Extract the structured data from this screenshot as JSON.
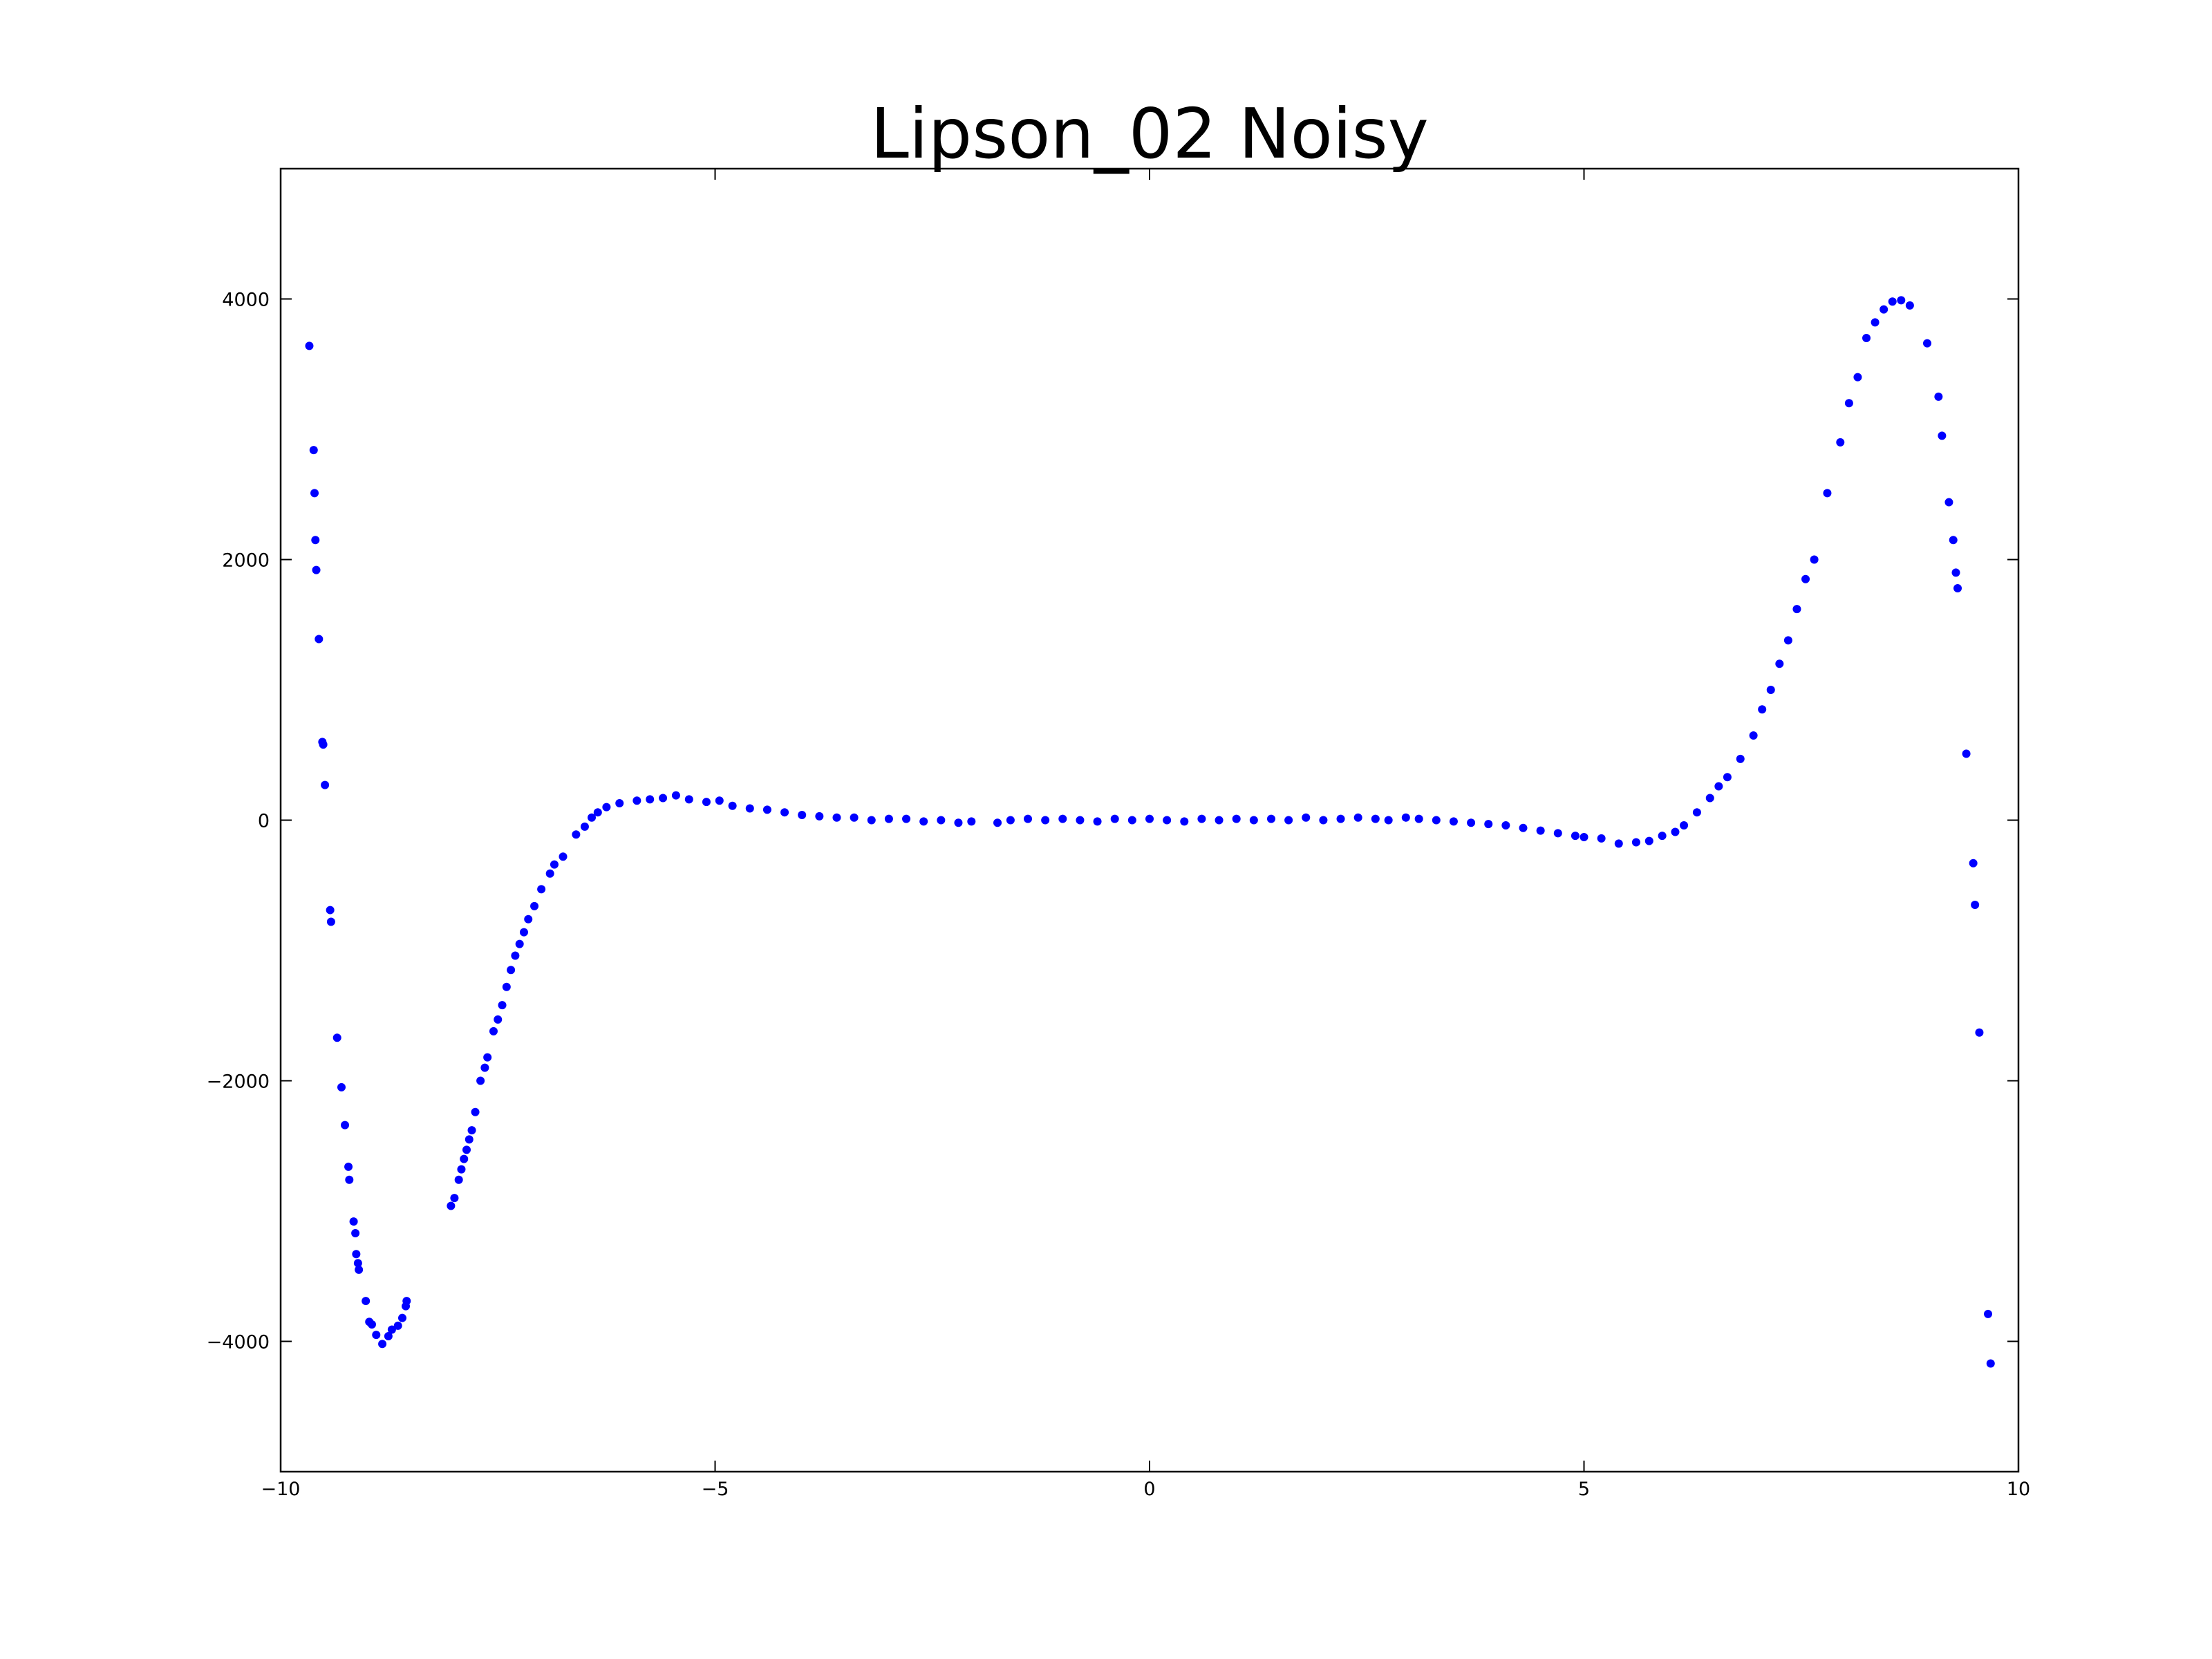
{
  "chart_data": {
    "type": "scatter",
    "title": "Lipson_02 Noisy",
    "color": "#0000ff",
    "x": [
      -9.67,
      -9.62,
      -9.61,
      -9.6,
      -9.59,
      -9.56,
      -9.52,
      -9.51,
      -9.49,
      -9.43,
      -9.42,
      -9.35,
      -9.3,
      -9.26,
      -9.22,
      -9.21,
      -9.16,
      -9.14,
      -9.13,
      -9.11,
      -9.1,
      -9.02,
      -8.98,
      -8.95,
      -8.9,
      -8.83,
      -8.76,
      -8.72,
      -8.65,
      -8.6,
      -8.56,
      -8.55,
      -8.04,
      -8.0,
      -7.95,
      -7.92,
      -7.89,
      -7.86,
      -7.83,
      -7.8,
      -7.76,
      -7.7,
      -7.65,
      -7.62,
      -7.55,
      -7.5,
      -7.45,
      -7.4,
      -7.35,
      -7.3,
      -7.25,
      -7.2,
      -7.15,
      -7.08,
      -7.0,
      -6.9,
      -6.85,
      -6.75,
      -6.6,
      -6.5,
      -6.42,
      -6.35,
      -6.25,
      -6.1,
      -5.9,
      -5.75,
      -5.6,
      -5.45,
      -5.3,
      -5.1,
      -4.95,
      -4.8,
      -4.6,
      -4.4,
      -4.2,
      -4.0,
      -3.8,
      -3.6,
      -3.4,
      -3.2,
      -3.0,
      -2.8,
      -2.6,
      -2.4,
      -2.2,
      -2.05,
      -1.75,
      -1.6,
      -1.4,
      -1.2,
      -1.0,
      -0.8,
      -0.6,
      -0.4,
      -0.2,
      0.0,
      0.2,
      0.4,
      0.6,
      0.8,
      1.0,
      1.2,
      1.4,
      1.6,
      1.8,
      2.0,
      2.2,
      2.4,
      2.6,
      2.75,
      2.95,
      3.1,
      3.3,
      3.5,
      3.7,
      3.9,
      4.1,
      4.3,
      4.5,
      4.7,
      4.9,
      5.0,
      5.2,
      5.4,
      5.6,
      5.75,
      5.9,
      6.05,
      6.15,
      6.3,
      6.45,
      6.55,
      6.65,
      6.8,
      6.95,
      7.05,
      7.15,
      7.25,
      7.35,
      7.45,
      7.55,
      7.65,
      7.8,
      7.95,
      8.05,
      8.15,
      8.25,
      8.35,
      8.45,
      8.55,
      8.65,
      8.75,
      8.95,
      9.08,
      9.12,
      9.2,
      9.25,
      9.28,
      9.3,
      9.4,
      9.48,
      9.5,
      9.55,
      9.65,
      9.68
    ],
    "values": [
      3640,
      2840,
      2510,
      2150,
      1920,
      1390,
      600,
      580,
      270,
      -690,
      -780,
      -1670,
      -2050,
      -2340,
      -2660,
      -2760,
      -3080,
      -3170,
      -3330,
      -3400,
      -3450,
      -3690,
      -3850,
      -3870,
      -3950,
      -4020,
      -3960,
      -3910,
      -3880,
      -3820,
      -3730,
      -3690,
      -2960,
      -2900,
      -2760,
      -2680,
      -2600,
      -2530,
      -2450,
      -2380,
      -2240,
      -2000,
      -1900,
      -1820,
      -1620,
      -1530,
      -1420,
      -1280,
      -1150,
      -1040,
      -950,
      -860,
      -760,
      -660,
      -530,
      -410,
      -340,
      -280,
      -110,
      -50,
      20,
      60,
      100,
      130,
      150,
      160,
      170,
      190,
      160,
      140,
      150,
      110,
      90,
      80,
      60,
      40,
      30,
      20,
      20,
      0,
      10,
      10,
      -10,
      0,
      -20,
      -10,
      -20,
      0,
      10,
      0,
      10,
      0,
      -10,
      10,
      0,
      10,
      0,
      -10,
      10,
      0,
      10,
      0,
      10,
      0,
      20,
      0,
      10,
      20,
      10,
      0,
      20,
      10,
      0,
      -10,
      -20,
      -30,
      -40,
      -60,
      -80,
      -100,
      -120,
      -130,
      -140,
      -180,
      -170,
      -160,
      -120,
      -90,
      -40,
      60,
      170,
      260,
      330,
      470,
      650,
      850,
      1000,
      1200,
      1380,
      1620,
      1850,
      2000,
      2510,
      2900,
      3200,
      3400,
      3700,
      3820,
      3920,
      3980,
      3990,
      3950,
      3660,
      3250,
      2950,
      2440,
      2150,
      1900,
      1780,
      510,
      -330,
      -650,
      -1630,
      -3790,
      -4170
    ],
    "xlim": [
      -10,
      10
    ],
    "xticks": [
      {
        "value": -10,
        "label": "−10"
      },
      {
        "value": -5,
        "label": "−5"
      },
      0,
      5,
      10
    ],
    "ylim": [
      -5000,
      5000
    ],
    "yticks": [
      {
        "value": -4000,
        "label": "−4000"
      },
      {
        "value": -2000,
        "label": "−2000"
      },
      0,
      2000,
      4000
    ]
  }
}
